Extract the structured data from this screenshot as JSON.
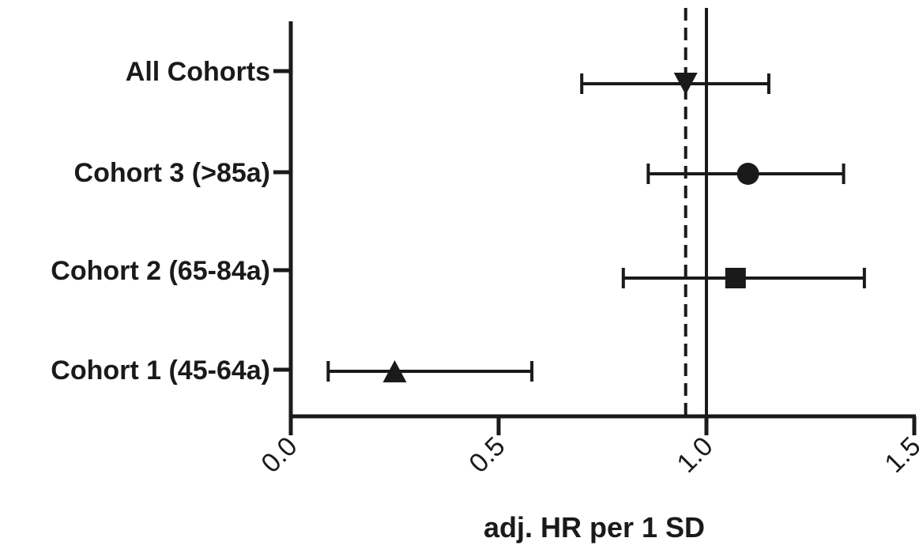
{
  "chart_data": {
    "type": "scatter",
    "subtype": "forest-plot",
    "xlabel": "adj. HR per 1 SD",
    "xlim": [
      0.0,
      1.5
    ],
    "x_ticks": [
      "0.0",
      "0.5",
      "1.0",
      "1.5"
    ],
    "reference_lines": [
      {
        "x": 0.95,
        "style": "dashed"
      },
      {
        "x": 1.0,
        "style": "solid"
      }
    ],
    "grid": false,
    "categories": [
      "All Cohorts",
      "Cohort 3 (>85a)",
      "Cohort 2 (65-84a)",
      "Cohort 1 (45-64a)"
    ],
    "points": [
      {
        "label": "All Cohorts",
        "estimate": 0.95,
        "ci_low": 0.7,
        "ci_high": 1.15,
        "marker": "triangle-down"
      },
      {
        "label": "Cohort 3 (>85a)",
        "estimate": 1.1,
        "ci_low": 0.86,
        "ci_high": 1.33,
        "marker": "circle"
      },
      {
        "label": "Cohort 2 (65-84a)",
        "estimate": 1.07,
        "ci_low": 0.8,
        "ci_high": 1.38,
        "marker": "square"
      },
      {
        "label": "Cohort 1 (45-64a)",
        "estimate": 0.25,
        "ci_low": 0.09,
        "ci_high": 0.58,
        "marker": "triangle-up"
      }
    ],
    "color": "#1a1a1a"
  }
}
